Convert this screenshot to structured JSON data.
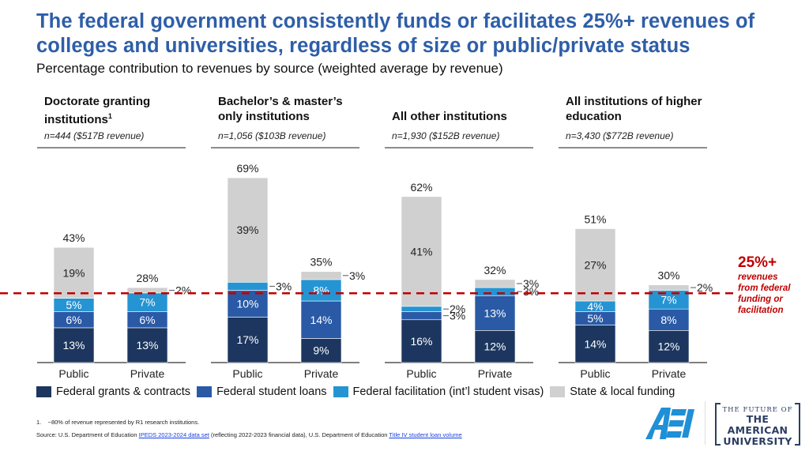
{
  "header": {
    "title": "The federal government consistently funds or facilitates 25%+ revenues of colleges and universities, regardless of size or public/private status",
    "subtitle": "Percentage contribution to revenues by source (weighted average by revenue)"
  },
  "groups": [
    {
      "title": "Doctorate granting institutions",
      "sup": "1",
      "n_label": "n=444 ($517B revenue)"
    },
    {
      "title": "Bachelor’s & master’s only institutions",
      "sup": "",
      "n_label": "n=1,056 ($103B revenue)"
    },
    {
      "title": "All other institutions",
      "sup": "",
      "n_label": "n=1,930 ($152B revenue)"
    },
    {
      "title": "All institutions of higher education",
      "sup": "",
      "n_label": "n=3,430 ($772B revenue)"
    }
  ],
  "colors": {
    "grants": "#1c365f",
    "loans": "#2a5aa6",
    "facilitation": "#2594d3",
    "state": "#d0d0d0",
    "threshold": "#c00000"
  },
  "annotation": {
    "big": "25%+",
    "lines": [
      "revenues",
      "from federal",
      "funding or",
      "facilitation"
    ]
  },
  "chart_data": {
    "type": "bar",
    "stacked": true,
    "title": "Percentage contribution to revenues by source (weighted average by revenue)",
    "xlabel": "",
    "ylabel": "",
    "ylim": [
      0,
      70
    ],
    "grid": false,
    "legend_position": "bottom",
    "threshold_line": {
      "value": 25,
      "style": "dashed",
      "label": "25%+ revenues from federal funding or facilitation"
    },
    "panels": [
      "Doctorate granting institutions",
      "Bachelor's & master's only institutions",
      "All other institutions",
      "All institutions of higher education"
    ],
    "categories": [
      "Public",
      "Private"
    ],
    "series": [
      {
        "name": "Federal grants & contracts",
        "key": "grants"
      },
      {
        "name": "Federal student loans",
        "key": "loans"
      },
      {
        "name": "Federal facilitation (int’l student visas)",
        "key": "facilitation"
      },
      {
        "name": "State & local funding",
        "key": "state"
      }
    ],
    "bars": [
      {
        "panel": 0,
        "category": "Public",
        "values": [
          13,
          6,
          5,
          19
        ],
        "labels": [
          "13%",
          "6%",
          "5%",
          "19%"
        ],
        "total": "43%"
      },
      {
        "panel": 0,
        "category": "Private",
        "values": [
          13,
          6,
          7,
          2
        ],
        "labels": [
          "13%",
          "6%",
          "7%",
          "2%"
        ],
        "total": "28%"
      },
      {
        "panel": 1,
        "category": "Public",
        "values": [
          17,
          10,
          3,
          39
        ],
        "labels": [
          "17%",
          "10%",
          "3%",
          "39%"
        ],
        "total": "69%"
      },
      {
        "panel": 1,
        "category": "Private",
        "values": [
          9,
          14,
          8,
          3
        ],
        "labels": [
          "9%",
          "14%",
          "8%",
          "3%"
        ],
        "total": "35%"
      },
      {
        "panel": 2,
        "category": "Public",
        "values": [
          16,
          3,
          2,
          41
        ],
        "labels": [
          "16%",
          "3%",
          "2%",
          "41%"
        ],
        "total": "62%"
      },
      {
        "panel": 2,
        "category": "Private",
        "values": [
          12,
          13,
          3,
          3
        ],
        "labels": [
          "12%",
          "13%",
          "3%",
          "3%"
        ],
        "total": "32%"
      },
      {
        "panel": 3,
        "category": "Public",
        "values": [
          14,
          5,
          4,
          27
        ],
        "labels": [
          "14%",
          "5%",
          "4%",
          "27%"
        ],
        "total": "51%"
      },
      {
        "panel": 3,
        "category": "Private",
        "values": [
          12,
          8,
          7,
          2
        ],
        "labels": [
          "12%",
          "8%",
          "7%",
          "2%"
        ],
        "total": "30%"
      }
    ]
  },
  "legend": {
    "items": [
      {
        "label": "Federal grants & contracts"
      },
      {
        "label": "Federal student loans"
      },
      {
        "label": "Federal facilitation (int’l student visas)"
      },
      {
        "label": "State & local funding"
      }
    ]
  },
  "footer": {
    "note": "1.    ~80% of revenue represented by R1 research institutions.",
    "source_prefix": "Source: U.S. Department of Education ",
    "link1": "IPEDS  2023-2024 data set",
    "source_mid": " (reflecting 2022-2023 financial data), U.S. Department of Education ",
    "link2": "Title IV student loan volume"
  },
  "logos": {
    "aei": "AEI",
    "fau_line1": "THE FUTURE OF",
    "fau_line2": "THE AMERICAN",
    "fau_line3": "UNIVERSITY"
  }
}
